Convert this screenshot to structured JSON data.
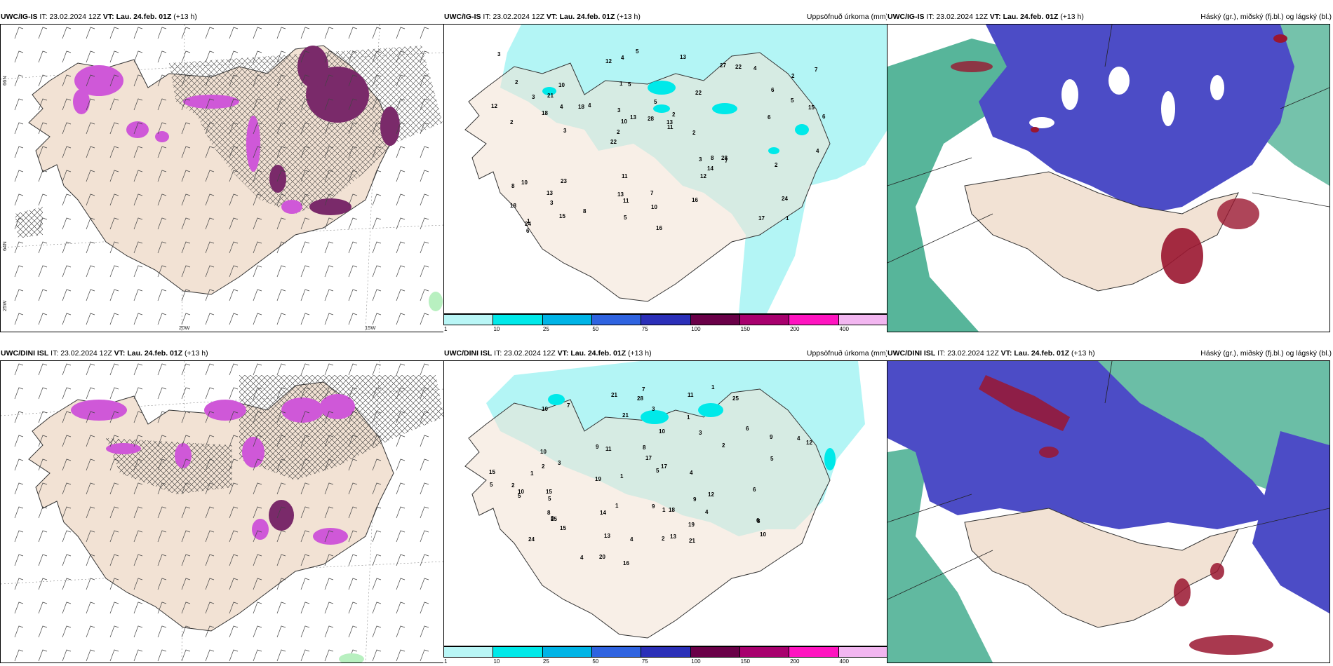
{
  "rows": [
    {
      "model": "UWC/IG-IS",
      "it_label": "IT:",
      "it_value": "23.02.2024 12Z",
      "vt_label": "VT:",
      "vt_value": "Lau. 24.feb. 01Z",
      "lead": "(+13 h)",
      "precip_title": "Uppsöfnuð úrkoma (mm)",
      "cloud_title": "Háský (gr.), miðský (fj.bl.) og lágský (bl.)",
      "precip_numbers": [
        "1",
        "2",
        "2",
        "22",
        "22",
        "1",
        "1",
        "5",
        "10",
        "4",
        "3",
        "5",
        "2",
        "7",
        "2",
        "4",
        "6",
        "3",
        "5",
        "2",
        "13",
        "10",
        "10",
        "27",
        "23",
        "17",
        "24",
        "28",
        "16",
        "18",
        "18",
        "12",
        "15",
        "15",
        "13",
        "11",
        "11",
        "8",
        "6",
        "7",
        "14",
        "16",
        "13",
        "6",
        "7",
        "4",
        "5",
        "3",
        "12",
        "21",
        "22",
        "24",
        "13",
        "12",
        "13",
        "11",
        "8",
        "8",
        "4",
        "3",
        "3",
        "4",
        "3",
        "10",
        "28",
        "18",
        "2",
        "2",
        "5",
        "6"
      ]
    },
    {
      "model": "UWC/DINI ISL",
      "it_label": "IT:",
      "it_value": "23.02.2024 12Z",
      "vt_label": "VT:",
      "vt_value": "Lau. 24.feb. 01Z",
      "lead": "(+13 h)",
      "precip_title": "Uppsöfnuð úrkoma (mm)",
      "cloud_title": "Háský (gr.), miðský (fj.bl.) og lágský (bl.)",
      "precip_numbers": [
        "24",
        "25",
        "7",
        "6",
        "1",
        "3",
        "5",
        "8",
        "9",
        "2",
        "2",
        "7",
        "4",
        "5",
        "16",
        "21",
        "10",
        "15",
        "25",
        "20",
        "21",
        "28",
        "21",
        "17",
        "17",
        "13",
        "10",
        "11",
        "10",
        "12",
        "10",
        "15",
        "13",
        "9",
        "8",
        "5",
        "4",
        "4",
        "3",
        "6",
        "12",
        "3",
        "4",
        "15",
        "5",
        "2",
        "9",
        "2",
        "14",
        "19",
        "11",
        "4",
        "8",
        "5",
        "19",
        "18",
        "9",
        "6",
        "10",
        "1",
        "1",
        "1",
        "1",
        "1",
        "8"
      ]
    }
  ],
  "colorbar": {
    "ticks": [
      "1",
      "10",
      "25",
      "50",
      "75",
      "100",
      "150",
      "200",
      "400"
    ],
    "colors": [
      "#b9f6f6",
      "#00e9e9",
      "#00b4e6",
      "#2f63e0",
      "#2b2fb8",
      "#6a0048",
      "#a8006e",
      "#ff14c0",
      "#f2b6f0"
    ]
  },
  "axis_labels": {
    "lon_20": "20W",
    "lon_15": "15W",
    "lat_66_a": "66N",
    "lat_64_a": "64N",
    "lon_25_a": "25W"
  },
  "colors": {
    "land": "#f2e2d4",
    "precip_light": "#b3f5f5",
    "snow_magenta": "#cf58d8",
    "snow_dark": "#7a2a6a",
    "cloud_blue": "#4c4cc6",
    "cloud_green": "#3aa888",
    "cloud_red": "#9a1630"
  }
}
